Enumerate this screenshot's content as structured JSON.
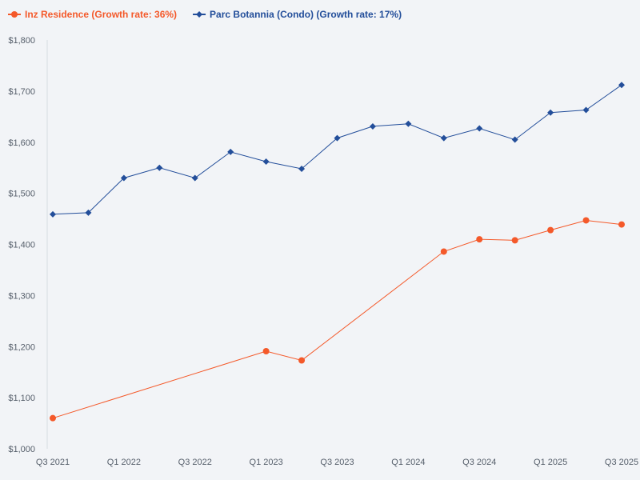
{
  "chart_data": {
    "type": "line",
    "categories": [
      "Q3 2021",
      "Q4 2021",
      "Q1 2022",
      "Q2 2022",
      "Q3 2022",
      "Q4 2022",
      "Q1 2023",
      "Q2 2023",
      "Q3 2023",
      "Q4 2023",
      "Q1 2024",
      "Q2 2024",
      "Q3 2024",
      "Q4 2024",
      "Q1 2025",
      "Q2 2025",
      "Q3 2025"
    ],
    "x_tick_labels": [
      "Q3 2021",
      "Q1 2022",
      "Q3 2022",
      "Q1 2023",
      "Q3 2023",
      "Q1 2024",
      "Q3 2024",
      "Q1 2025",
      "Q3 2025"
    ],
    "x_tick_indices": [
      0,
      2,
      4,
      6,
      8,
      10,
      12,
      14,
      16
    ],
    "ylim": [
      1000,
      1800
    ],
    "y_ticks": [
      1000,
      1100,
      1200,
      1300,
      1400,
      1500,
      1600,
      1700,
      1800
    ],
    "y_tick_labels": [
      "$1,000",
      "$1,100",
      "$1,200",
      "$1,300",
      "$1,400",
      "$1,500",
      "$1,600",
      "$1,700",
      "$1,800"
    ],
    "legend_position": "top-left",
    "series": [
      {
        "name": "Inz Residence (Growth rate: 36%)",
        "color": "#f4592a",
        "marker": "circle",
        "values": [
          1060,
          null,
          null,
          null,
          null,
          null,
          1191,
          1173,
          null,
          null,
          null,
          1386,
          1410,
          1408,
          1428,
          1447,
          1439
        ]
      },
      {
        "name": "Parc Botannia (Condo) (Growth rate: 17%)",
        "color": "#234e9a",
        "marker": "diamond",
        "values": [
          1459,
          1462,
          1530,
          1550,
          1530,
          1581,
          1562,
          1548,
          1608,
          1631,
          1636,
          1608,
          1627,
          1605,
          1658,
          1663,
          1712
        ]
      }
    ]
  }
}
